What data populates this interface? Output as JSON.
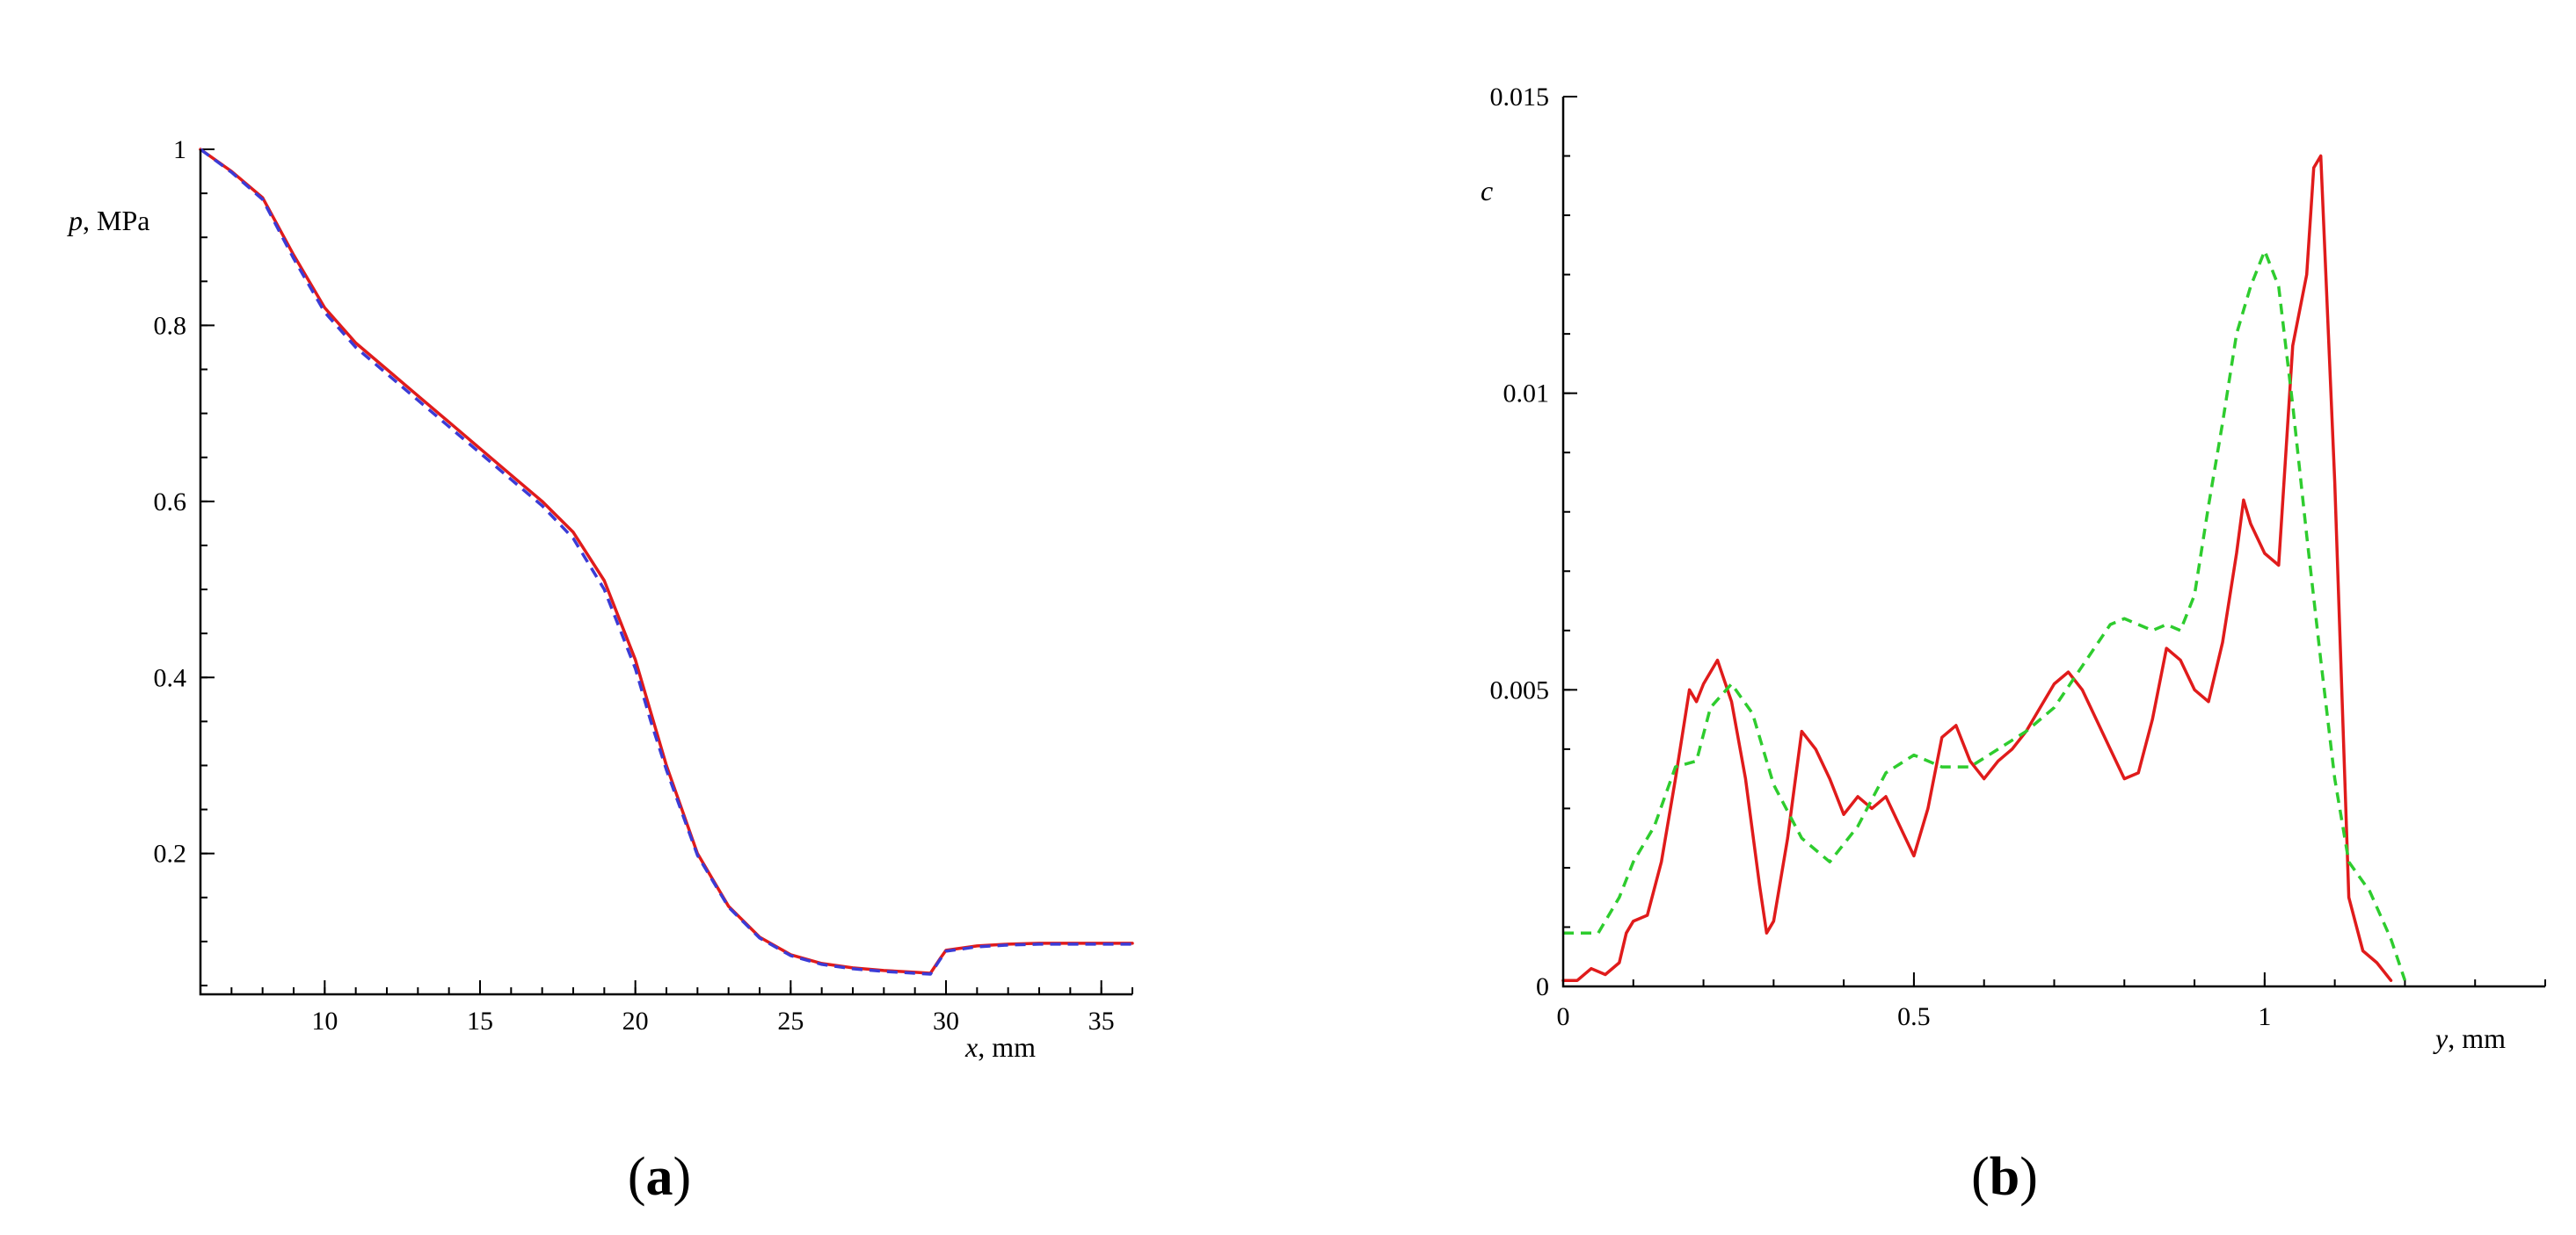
{
  "colors": {
    "red": "#e01b1b",
    "blue": "#3b3bd6",
    "green": "#2ecc2e"
  },
  "chart_data": [
    {
      "type": "line",
      "panel_label": "a",
      "xlabel_var": "x",
      "xlabel_unit": ", mm",
      "ylabel_var": "p",
      "ylabel_unit": ", MPa",
      "xlim": [
        6,
        36
      ],
      "ylim": [
        0.04,
        1.0
      ],
      "xticks": [
        10,
        15,
        20,
        25,
        30,
        35
      ],
      "xtick_labels": [
        "10",
        "15",
        "20",
        "25",
        "30",
        "35"
      ],
      "yticks": [
        0.2,
        0.4,
        0.6,
        0.8,
        1.0
      ],
      "ytick_labels": [
        "0.2",
        "0.4",
        "0.6",
        "0.8",
        "1"
      ],
      "x_minor_step": 1,
      "y_minor_step": 0.05,
      "series": [
        {
          "color": "#e01b1b",
          "style": "solid",
          "x": [
            6,
            7,
            8,
            9,
            10,
            11,
            12,
            13,
            14,
            15,
            16,
            17,
            18,
            19,
            20,
            20.5,
            21,
            22,
            23,
            24,
            25,
            26,
            27,
            28,
            29,
            29.5,
            29.8,
            30,
            31,
            32,
            33,
            34,
            35,
            36
          ],
          "y": [
            1.0,
            0.975,
            0.945,
            0.88,
            0.82,
            0.78,
            0.75,
            0.72,
            0.69,
            0.66,
            0.63,
            0.6,
            0.565,
            0.51,
            0.42,
            0.36,
            0.3,
            0.2,
            0.14,
            0.105,
            0.085,
            0.075,
            0.07,
            0.067,
            0.065,
            0.064,
            0.08,
            0.09,
            0.095,
            0.097,
            0.098,
            0.098,
            0.098,
            0.098
          ]
        },
        {
          "color": "#3b3bd6",
          "style": "dashed",
          "x": [
            6,
            7,
            8,
            9,
            10,
            11,
            12,
            13,
            14,
            15,
            16,
            17,
            18,
            19,
            20,
            20.5,
            21,
            22,
            23,
            24,
            25,
            26,
            27,
            28,
            29,
            29.5,
            29.8,
            30,
            31,
            32,
            33,
            34,
            35,
            36
          ],
          "y": [
            1.0,
            0.974,
            0.943,
            0.876,
            0.815,
            0.775,
            0.745,
            0.715,
            0.685,
            0.655,
            0.625,
            0.595,
            0.558,
            0.5,
            0.41,
            0.35,
            0.295,
            0.198,
            0.139,
            0.104,
            0.084,
            0.074,
            0.069,
            0.066,
            0.064,
            0.063,
            0.079,
            0.089,
            0.094,
            0.096,
            0.097,
            0.097,
            0.097,
            0.097
          ]
        }
      ]
    },
    {
      "type": "line",
      "panel_label": "b",
      "xlabel_var": "y",
      "xlabel_unit": ", mm",
      "ylabel_var": "c",
      "ylabel_unit": "",
      "xlim": [
        0,
        1.4
      ],
      "ylim": [
        0,
        0.015
      ],
      "xticks": [
        0,
        0.5,
        1
      ],
      "xtick_labels": [
        "0",
        "0.5",
        "1"
      ],
      "yticks": [
        0,
        0.005,
        0.01,
        0.015
      ],
      "ytick_labels": [
        "0",
        "0.005",
        "0.01",
        "0.015"
      ],
      "x_minor_step": 0.1,
      "y_minor_step": 0.001,
      "series": [
        {
          "color": "#e01b1b",
          "style": "solid",
          "x": [
            0,
            0.02,
            0.04,
            0.06,
            0.08,
            0.09,
            0.1,
            0.12,
            0.14,
            0.16,
            0.18,
            0.19,
            0.2,
            0.22,
            0.24,
            0.26,
            0.28,
            0.29,
            0.3,
            0.32,
            0.34,
            0.36,
            0.38,
            0.4,
            0.42,
            0.44,
            0.46,
            0.48,
            0.5,
            0.52,
            0.54,
            0.56,
            0.58,
            0.6,
            0.62,
            0.64,
            0.66,
            0.68,
            0.7,
            0.72,
            0.74,
            0.76,
            0.78,
            0.8,
            0.82,
            0.84,
            0.86,
            0.88,
            0.9,
            0.92,
            0.94,
            0.96,
            0.97,
            0.98,
            1.0,
            1.02,
            1.04,
            1.06,
            1.07,
            1.08,
            1.1,
            1.12,
            1.14,
            1.16,
            1.18
          ],
          "y": [
            0.0001,
            0.0001,
            0.0003,
            0.0002,
            0.0004,
            0.0009,
            0.0011,
            0.0012,
            0.0021,
            0.0035,
            0.005,
            0.0048,
            0.0051,
            0.0055,
            0.0048,
            0.0035,
            0.0017,
            0.0009,
            0.0011,
            0.0025,
            0.0043,
            0.004,
            0.0035,
            0.0029,
            0.0032,
            0.003,
            0.0032,
            0.0027,
            0.0022,
            0.003,
            0.0042,
            0.0044,
            0.0038,
            0.0035,
            0.0038,
            0.004,
            0.0043,
            0.0047,
            0.0051,
            0.0053,
            0.005,
            0.0045,
            0.004,
            0.0035,
            0.0036,
            0.0045,
            0.0057,
            0.0055,
            0.005,
            0.0048,
            0.0058,
            0.0073,
            0.0082,
            0.0078,
            0.0073,
            0.0071,
            0.0108,
            0.012,
            0.0138,
            0.014,
            0.0085,
            0.0015,
            0.0006,
            0.0004,
            0.0001
          ]
        },
        {
          "color": "#2ecc2e",
          "style": "dashed",
          "x": [
            0,
            0.05,
            0.08,
            0.1,
            0.13,
            0.16,
            0.19,
            0.21,
            0.24,
            0.27,
            0.3,
            0.34,
            0.38,
            0.42,
            0.46,
            0.5,
            0.54,
            0.58,
            0.62,
            0.66,
            0.7,
            0.74,
            0.78,
            0.8,
            0.82,
            0.84,
            0.86,
            0.88,
            0.9,
            0.92,
            0.94,
            0.96,
            0.98,
            1.0,
            1.02,
            1.04,
            1.06,
            1.08,
            1.1,
            1.12,
            1.15,
            1.18,
            1.2
          ],
          "y": [
            0.0009,
            0.0009,
            0.0015,
            0.0021,
            0.0027,
            0.0037,
            0.0038,
            0.0047,
            0.0051,
            0.0046,
            0.0034,
            0.0025,
            0.0021,
            0.0027,
            0.0036,
            0.0039,
            0.0037,
            0.0037,
            0.004,
            0.0043,
            0.0047,
            0.0054,
            0.0061,
            0.0062,
            0.0061,
            0.006,
            0.0061,
            0.006,
            0.0066,
            0.0081,
            0.0095,
            0.011,
            0.0118,
            0.0124,
            0.0118,
            0.0098,
            0.0076,
            0.0055,
            0.0035,
            0.0021,
            0.0016,
            0.0008,
            0.0001
          ]
        }
      ]
    }
  ]
}
